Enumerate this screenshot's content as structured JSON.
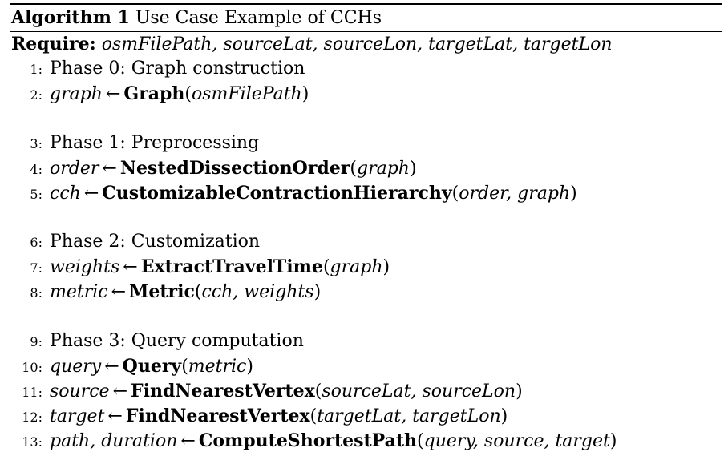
{
  "caption": {
    "label": "Algorithm 1",
    "title": " Use Case Example of CCHs"
  },
  "require": {
    "keyword": "Require:",
    "params": "osmFilePath, sourceLat, sourceLon, targetLat, targetLon"
  },
  "arrow": "←",
  "lines": [
    {
      "num": "1:",
      "text": "Phase 0: Graph construction"
    },
    {
      "num": "2:",
      "lhs": "graph",
      "fn": "Graph",
      "args": "osmFilePath"
    },
    {
      "num": "3:",
      "text": "Phase 1: Preprocessing"
    },
    {
      "num": "4:",
      "lhs": "order",
      "fn": "NestedDissectionOrder",
      "args": "graph"
    },
    {
      "num": "5:",
      "lhs": "cch",
      "fn": "CustomizableContractionHierarchy",
      "args": "order, graph"
    },
    {
      "num": "6:",
      "text": "Phase 2: Customization"
    },
    {
      "num": "7:",
      "lhs": "weights",
      "fn": "ExtractTravelTime",
      "args": "graph"
    },
    {
      "num": "8:",
      "lhs": "metric",
      "fn": "Metric",
      "args": "cch, weights"
    },
    {
      "num": "9:",
      "text": "Phase 3: Query computation"
    },
    {
      "num": "10:",
      "lhs": "query",
      "fn": "Query",
      "args": "metric"
    },
    {
      "num": "11:",
      "lhs": "source",
      "fn": "FindNearestVertex",
      "args": "sourceLat, sourceLon"
    },
    {
      "num": "12:",
      "lhs": "target",
      "fn": "FindNearestVertex",
      "args": "targetLat, targetLon"
    },
    {
      "num": "13:",
      "lhs": "path, duration",
      "fn": "ComputeShortestPath",
      "args": "query, source, target"
    }
  ]
}
